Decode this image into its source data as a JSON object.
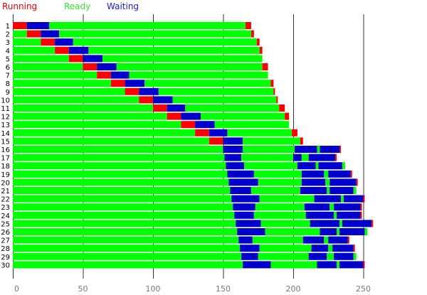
{
  "chart_data": {
    "type": "bar",
    "orientation": "horizontal-stacked",
    "title": "",
    "xlabel": "",
    "ylabel": "",
    "xlim": [
      0,
      275
    ],
    "xticks": [
      0,
      50,
      100,
      150,
      200,
      250
    ],
    "grid": true,
    "legend": [
      {
        "label": "Running",
        "color": "#d40000"
      },
      {
        "label": "Ready",
        "color": "#2ee52e"
      },
      {
        "label": "Waiting",
        "color": "#1a1acd"
      }
    ],
    "colors": {
      "running": "#ff0000",
      "ready": "#00ff00",
      "waiting": "#0000cc"
    },
    "rows": [
      {
        "label": "1",
        "segments": [
          [
            "running",
            0,
            10
          ],
          [
            "waiting",
            10,
            26
          ],
          [
            "ready",
            26,
            166
          ],
          [
            "running",
            166,
            170
          ]
        ]
      },
      {
        "label": "2",
        "segments": [
          [
            "ready",
            0,
            10
          ],
          [
            "running",
            10,
            20
          ],
          [
            "waiting",
            20,
            33
          ],
          [
            "ready",
            33,
            170
          ],
          [
            "running",
            170,
            172
          ]
        ]
      },
      {
        "label": "3",
        "segments": [
          [
            "ready",
            0,
            20
          ],
          [
            "running",
            20,
            30
          ],
          [
            "waiting",
            30,
            43
          ],
          [
            "ready",
            43,
            174
          ],
          [
            "running",
            174,
            176
          ]
        ]
      },
      {
        "label": "4",
        "segments": [
          [
            "ready",
            0,
            30
          ],
          [
            "running",
            30,
            40
          ],
          [
            "waiting",
            40,
            54
          ],
          [
            "ready",
            54,
            176
          ],
          [
            "running",
            176,
            178
          ]
        ]
      },
      {
        "label": "5",
        "segments": [
          [
            "ready",
            0,
            40
          ],
          [
            "running",
            40,
            50
          ],
          [
            "waiting",
            50,
            64
          ],
          [
            "ready",
            64,
            178
          ]
        ]
      },
      {
        "label": "6",
        "segments": [
          [
            "ready",
            0,
            50
          ],
          [
            "running",
            50,
            60
          ],
          [
            "waiting",
            60,
            74
          ],
          [
            "ready",
            74,
            178
          ],
          [
            "running",
            178,
            182
          ]
        ]
      },
      {
        "label": "7",
        "segments": [
          [
            "ready",
            0,
            60
          ],
          [
            "running",
            60,
            70
          ],
          [
            "waiting",
            70,
            83
          ],
          [
            "ready",
            83,
            182
          ]
        ]
      },
      {
        "label": "8",
        "segments": [
          [
            "ready",
            0,
            70
          ],
          [
            "running",
            70,
            80
          ],
          [
            "waiting",
            80,
            94
          ],
          [
            "ready",
            94,
            184
          ],
          [
            "running",
            184,
            186
          ]
        ]
      },
      {
        "label": "9",
        "segments": [
          [
            "ready",
            0,
            80
          ],
          [
            "running",
            80,
            90
          ],
          [
            "waiting",
            90,
            104
          ],
          [
            "ready",
            104,
            186
          ],
          [
            "running",
            186,
            187
          ]
        ]
      },
      {
        "label": "10",
        "segments": [
          [
            "ready",
            0,
            90
          ],
          [
            "running",
            90,
            100
          ],
          [
            "waiting",
            100,
            114
          ],
          [
            "ready",
            114,
            188
          ],
          [
            "running",
            188,
            189
          ]
        ]
      },
      {
        "label": "11",
        "segments": [
          [
            "ready",
            0,
            100
          ],
          [
            "running",
            100,
            110
          ],
          [
            "waiting",
            110,
            123
          ],
          [
            "ready",
            123,
            190
          ],
          [
            "running",
            190,
            194
          ]
        ]
      },
      {
        "label": "12",
        "segments": [
          [
            "ready",
            0,
            110
          ],
          [
            "running",
            110,
            120
          ],
          [
            "waiting",
            120,
            134
          ],
          [
            "ready",
            134,
            194
          ],
          [
            "running",
            194,
            197
          ]
        ]
      },
      {
        "label": "13",
        "segments": [
          [
            "ready",
            0,
            120
          ],
          [
            "running",
            120,
            130
          ],
          [
            "waiting",
            130,
            144
          ],
          [
            "ready",
            144,
            197
          ]
        ]
      },
      {
        "label": "14",
        "segments": [
          [
            "ready",
            0,
            130
          ],
          [
            "running",
            130,
            140
          ],
          [
            "waiting",
            140,
            153
          ],
          [
            "ready",
            153,
            199
          ],
          [
            "running",
            199,
            203
          ]
        ]
      },
      {
        "label": "15",
        "segments": [
          [
            "ready",
            0,
            140
          ],
          [
            "running",
            140,
            150
          ],
          [
            "waiting",
            150,
            164
          ],
          [
            "ready",
            164,
            205
          ],
          [
            "running",
            205,
            207
          ]
        ]
      },
      {
        "label": "16",
        "segments": [
          [
            "ready",
            0,
            150
          ],
          [
            "waiting",
            150,
            164
          ],
          [
            "ready",
            164,
            201
          ],
          [
            "waiting",
            201,
            217
          ],
          [
            "ready",
            217,
            219
          ],
          [
            "waiting",
            219,
            233
          ],
          [
            "running",
            233,
            234
          ]
        ]
      },
      {
        "label": "17",
        "segments": [
          [
            "ready",
            0,
            151
          ],
          [
            "waiting",
            151,
            163
          ],
          [
            "ready",
            163,
            200
          ],
          [
            "waiting",
            200,
            206
          ],
          [
            "ready",
            206,
            211
          ],
          [
            "waiting",
            211,
            230
          ],
          [
            "running",
            230,
            231
          ]
        ]
      },
      {
        "label": "18",
        "segments": [
          [
            "ready",
            0,
            152
          ],
          [
            "waiting",
            152,
            165
          ],
          [
            "ready",
            165,
            203
          ],
          [
            "waiting",
            203,
            216
          ],
          [
            "ready",
            216,
            218
          ],
          [
            "waiting",
            218,
            235
          ],
          [
            "ready",
            235,
            237
          ]
        ]
      },
      {
        "label": "19",
        "segments": [
          [
            "ready",
            0,
            153
          ],
          [
            "waiting",
            153,
            172
          ],
          [
            "ready",
            172,
            206
          ],
          [
            "waiting",
            206,
            222
          ],
          [
            "ready",
            222,
            225
          ],
          [
            "waiting",
            225,
            241
          ],
          [
            "running",
            241,
            242
          ]
        ]
      },
      {
        "label": "20",
        "segments": [
          [
            "ready",
            0,
            154
          ],
          [
            "waiting",
            154,
            175
          ],
          [
            "ready",
            175,
            206
          ],
          [
            "waiting",
            206,
            223
          ],
          [
            "ready",
            223,
            226
          ],
          [
            "waiting",
            226,
            245
          ],
          [
            "running",
            245,
            246
          ]
        ]
      },
      {
        "label": "21",
        "segments": [
          [
            "ready",
            0,
            155
          ],
          [
            "waiting",
            155,
            170
          ],
          [
            "ready",
            170,
            205
          ],
          [
            "waiting",
            205,
            224
          ],
          [
            "ready",
            224,
            226
          ],
          [
            "waiting",
            226,
            243
          ],
          [
            "ready",
            243,
            245
          ]
        ]
      },
      {
        "label": "22",
        "segments": [
          [
            "ready",
            0,
            156
          ],
          [
            "waiting",
            156,
            176
          ],
          [
            "ready",
            176,
            215
          ],
          [
            "waiting",
            215,
            234
          ],
          [
            "ready",
            234,
            236
          ],
          [
            "waiting",
            236,
            250
          ],
          [
            "running",
            250,
            251
          ]
        ]
      },
      {
        "label": "23",
        "segments": [
          [
            "ready",
            0,
            157
          ],
          [
            "waiting",
            157,
            173
          ],
          [
            "ready",
            173,
            208
          ],
          [
            "waiting",
            208,
            226
          ],
          [
            "ready",
            226,
            229
          ],
          [
            "waiting",
            229,
            248
          ],
          [
            "running",
            248,
            249
          ]
        ]
      },
      {
        "label": "24",
        "segments": [
          [
            "ready",
            0,
            158
          ],
          [
            "waiting",
            158,
            172
          ],
          [
            "ready",
            172,
            209
          ],
          [
            "waiting",
            209,
            229
          ],
          [
            "ready",
            229,
            231
          ],
          [
            "waiting",
            231,
            248
          ],
          [
            "running",
            248,
            249
          ]
        ]
      },
      {
        "label": "25",
        "segments": [
          [
            "ready",
            0,
            159
          ],
          [
            "waiting",
            159,
            177
          ],
          [
            "ready",
            177,
            212
          ],
          [
            "waiting",
            212,
            233
          ],
          [
            "ready",
            233,
            235
          ],
          [
            "waiting",
            235,
            256
          ],
          [
            "running",
            256,
            257
          ]
        ]
      },
      {
        "label": "26",
        "segments": [
          [
            "ready",
            0,
            160
          ],
          [
            "waiting",
            160,
            180
          ],
          [
            "ready",
            180,
            219
          ],
          [
            "waiting",
            219,
            231
          ],
          [
            "ready",
            231,
            233
          ],
          [
            "waiting",
            233,
            251
          ],
          [
            "ready",
            251,
            253
          ]
        ]
      },
      {
        "label": "27",
        "segments": [
          [
            "ready",
            0,
            161
          ],
          [
            "waiting",
            161,
            171
          ],
          [
            "ready",
            171,
            207
          ],
          [
            "waiting",
            207,
            222
          ],
          [
            "ready",
            222,
            225
          ],
          [
            "waiting",
            225,
            239
          ],
          [
            "running",
            239,
            240
          ]
        ]
      },
      {
        "label": "28",
        "segments": [
          [
            "ready",
            0,
            162
          ],
          [
            "waiting",
            162,
            176
          ],
          [
            "ready",
            176,
            213
          ],
          [
            "waiting",
            213,
            225
          ],
          [
            "ready",
            225,
            228
          ],
          [
            "waiting",
            228,
            243
          ],
          [
            "running",
            243,
            244
          ]
        ]
      },
      {
        "label": "29",
        "segments": [
          [
            "ready",
            0,
            163
          ],
          [
            "waiting",
            163,
            175
          ],
          [
            "ready",
            175,
            211
          ],
          [
            "waiting",
            211,
            224
          ],
          [
            "ready",
            224,
            229
          ],
          [
            "waiting",
            229,
            243
          ],
          [
            "ready",
            243,
            245
          ]
        ]
      },
      {
        "label": "30",
        "segments": [
          [
            "ready",
            0,
            164
          ],
          [
            "waiting",
            164,
            184
          ],
          [
            "ready",
            184,
            217
          ],
          [
            "waiting",
            217,
            231
          ],
          [
            "ready",
            231,
            233
          ],
          [
            "waiting",
            233,
            250
          ],
          [
            "running",
            250,
            251
          ]
        ]
      }
    ]
  }
}
